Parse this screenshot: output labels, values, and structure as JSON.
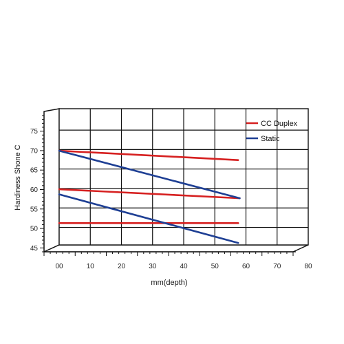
{
  "chart_data": {
    "type": "line",
    "xlabel": "mm(depth)",
    "ylabel": "Hardiness Shone C",
    "x_ticks": [
      "00",
      "10",
      "20",
      "30",
      "40",
      "50",
      "60",
      "70",
      "80"
    ],
    "y_ticks": [
      "45",
      "50",
      "55",
      "60",
      "65",
      "70",
      "75"
    ],
    "xlim": [
      0,
      80
    ],
    "ylim": [
      44,
      79
    ],
    "grid": true,
    "legend_position": "right",
    "series": [
      {
        "name": "CC Duplex",
        "color": "#d62020",
        "segments": [
          {
            "x": [
              0,
              57.5
            ],
            "y": [
              68.2,
              65.8
            ]
          },
          {
            "x": [
              0,
              58
            ],
            "y": [
              58.3,
              56
            ]
          },
          {
            "x": [
              0,
              57.5
            ],
            "y": [
              49.6,
              49.6
            ]
          }
        ]
      },
      {
        "name": "Static",
        "color": "#1e3f94",
        "segments": [
          {
            "x": [
              0,
              58
            ],
            "y": [
              68.2,
              56
            ]
          },
          {
            "x": [
              0,
              57.5
            ],
            "y": [
              57,
              44.5
            ]
          }
        ]
      }
    ]
  }
}
